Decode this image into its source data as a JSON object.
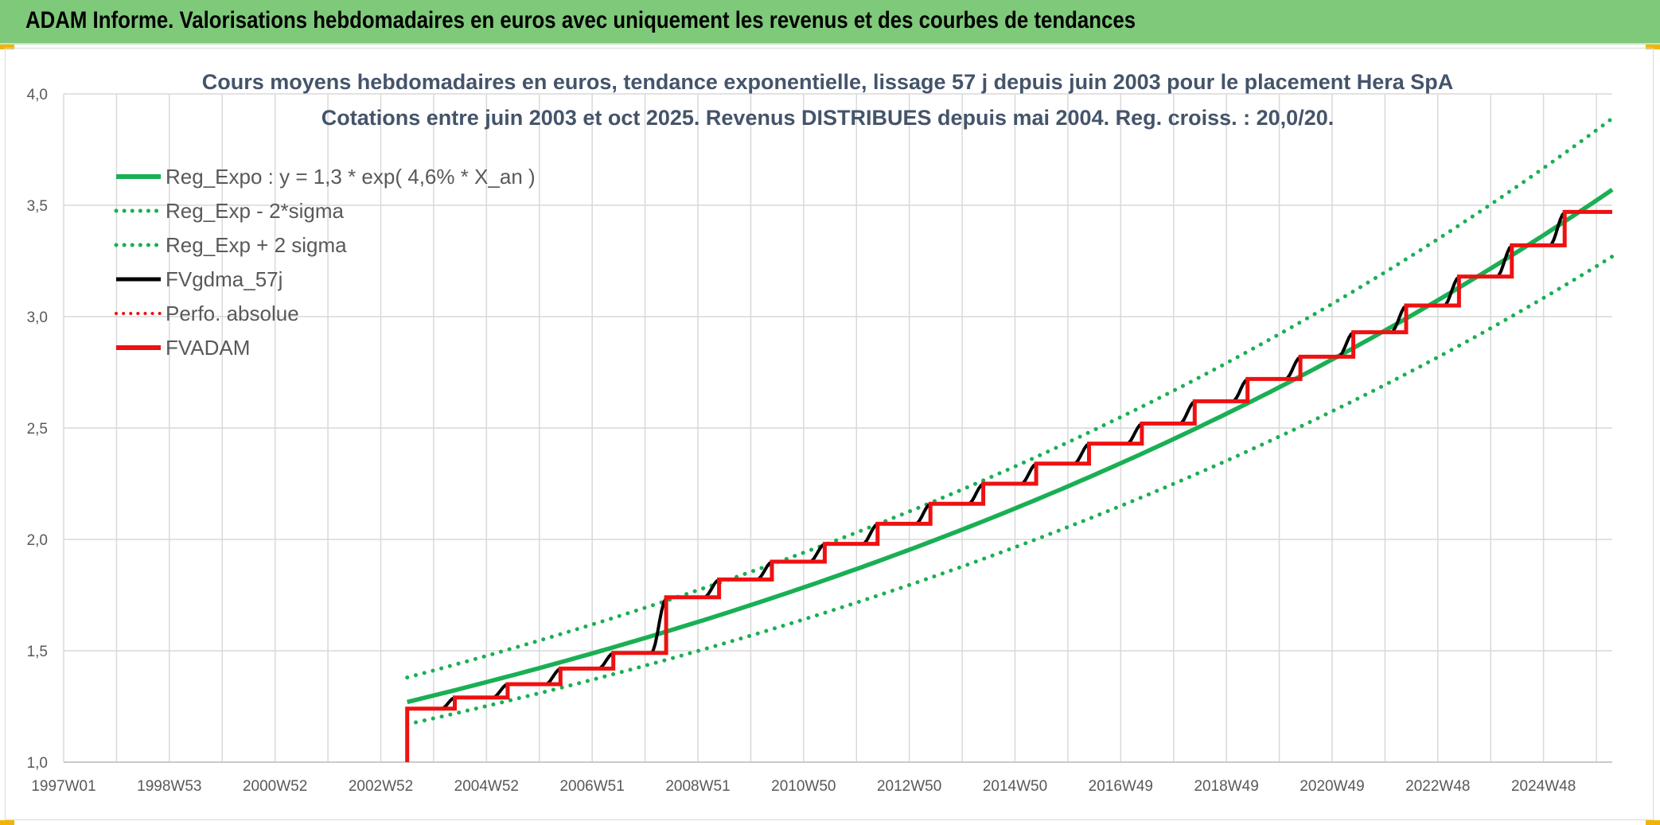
{
  "banner": {
    "title": "ADAM Informe. Valorisations hebdomadaires en euros avec uniquement les revenus et des courbes de tendances"
  },
  "colors": {
    "banner_bg": "#7ec97a",
    "trend_green": "#1aaf54",
    "fvadam_red": "#ee1111",
    "fvgdma_black": "#000000",
    "grid": "#d9d9d9",
    "title_text": "#44546a",
    "axis_text": "#595959"
  },
  "chart_data": {
    "type": "line",
    "title_lines": [
      "Cours moyens hebdomadaires en euros, tendance exponentielle, lissage 57 j depuis juin 2003 pour le placement Hera SpA",
      "Cotations entre juin 2003 et oct 2025. Revenus DISTRIBUES depuis mai 2004. Reg. croiss. : 20,0/20."
    ],
    "ylim": [
      1.0,
      4.0
    ],
    "y_ticks": [
      "1,0",
      "1,5",
      "2,0",
      "2,5",
      "3,0",
      "3,5",
      "4,0"
    ],
    "xlim": [
      1997.0,
      2026.3
    ],
    "x_ticks": [
      {
        "label": "1997W01",
        "year": 1997.0
      },
      {
        "label": "1998W53",
        "year": 1999.0
      },
      {
        "label": "2000W52",
        "year": 2001.0
      },
      {
        "label": "2002W52",
        "year": 2003.0
      },
      {
        "label": "2004W52",
        "year": 2005.0
      },
      {
        "label": "2006W51",
        "year": 2007.0
      },
      {
        "label": "2008W51",
        "year": 2009.0
      },
      {
        "label": "2010W50",
        "year": 2011.0
      },
      {
        "label": "2012W50",
        "year": 2013.0
      },
      {
        "label": "2014W50",
        "year": 2015.0
      },
      {
        "label": "2016W49",
        "year": 2017.0
      },
      {
        "label": "2018W49",
        "year": 2019.0
      },
      {
        "label": "2020W49",
        "year": 2021.0
      },
      {
        "label": "2022W48",
        "year": 2023.0
      },
      {
        "label": "2024W48",
        "year": 2025.0
      }
    ],
    "grid": true,
    "legend_position": "top-left",
    "series": [
      {
        "name": "Reg_Expo : y = 1,3 * exp( 4,6% *  X_an )",
        "style": "solid",
        "color": "#1aaf54",
        "x_start": 2003.5,
        "x_end": 2026.3,
        "y_start": 1.27,
        "y_end": 3.57
      },
      {
        "name": "Reg_Exp - 2*sigma",
        "style": "dotted",
        "color": "#1aaf54",
        "x_start": 2003.5,
        "x_end": 2026.3,
        "y_start": 1.17,
        "y_end": 3.27
      },
      {
        "name": "Reg_Exp + 2 sigma",
        "style": "dotted",
        "color": "#1aaf54",
        "x_start": 2003.5,
        "x_end": 2026.3,
        "y_start": 1.38,
        "y_end": 3.89
      },
      {
        "name": "FVgdma_57j",
        "style": "solid",
        "color": "#000000",
        "steps": "fvadam"
      },
      {
        "name": "Perfo. absolue",
        "style": "dotted",
        "color": "#ee1111",
        "points": []
      },
      {
        "name": "FVADAM",
        "style": "solid",
        "color": "#ee1111",
        "start": [
          2003.5,
          1.0
        ],
        "steps": [
          [
            2003.5,
            1.24
          ],
          [
            2004.4,
            1.29
          ],
          [
            2005.4,
            1.35
          ],
          [
            2006.4,
            1.42
          ],
          [
            2007.4,
            1.49
          ],
          [
            2008.4,
            1.74
          ],
          [
            2009.4,
            1.82
          ],
          [
            2010.4,
            1.9
          ],
          [
            2011.4,
            1.98
          ],
          [
            2012.4,
            2.07
          ],
          [
            2013.4,
            2.16
          ],
          [
            2014.4,
            2.25
          ],
          [
            2015.4,
            2.34
          ],
          [
            2016.4,
            2.43
          ],
          [
            2017.4,
            2.52
          ],
          [
            2018.4,
            2.62
          ],
          [
            2019.4,
            2.72
          ],
          [
            2020.4,
            2.82
          ],
          [
            2021.4,
            2.93
          ],
          [
            2022.4,
            3.05
          ],
          [
            2023.4,
            3.18
          ],
          [
            2024.4,
            3.32
          ],
          [
            2025.4,
            3.47
          ]
        ],
        "end_x": 2026.3
      }
    ]
  }
}
